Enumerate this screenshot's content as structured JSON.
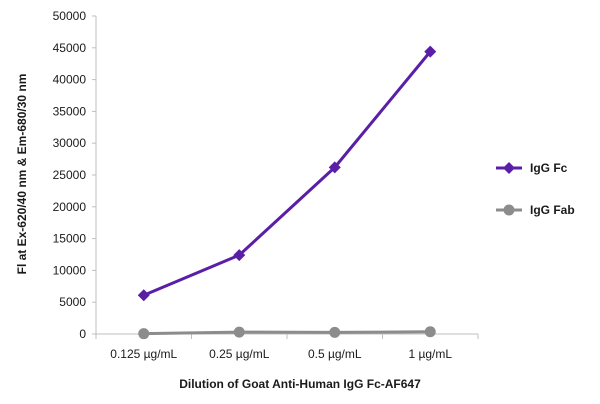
{
  "chart_data": {
    "type": "line",
    "categories": [
      "0.125 µg/mL",
      "0.25 µg/mL",
      "0.5 µg/mL",
      "1 µg/mL"
    ],
    "series": [
      {
        "name": "IgG Fc",
        "values": [
          6100,
          12400,
          26200,
          44400
        ],
        "color": "#5a1fa6",
        "marker": "diamond"
      },
      {
        "name": "IgG Fab",
        "values": [
          50,
          300,
          250,
          350
        ],
        "color": "#8c8c8c",
        "marker": "circle"
      }
    ],
    "xlabel": "Dilution of Goat Anti-Human IgG Fc-AF647",
    "ylabel": "Fl at Ex-620/40 nm & Em-680/30 nm",
    "ylim": [
      0,
      50000
    ],
    "yticks": [
      "0",
      "5000",
      "10000",
      "15000",
      "20000",
      "25000",
      "30000",
      "35000",
      "40000",
      "45000",
      "50000"
    ],
    "grid": false,
    "legend_position": "right"
  }
}
